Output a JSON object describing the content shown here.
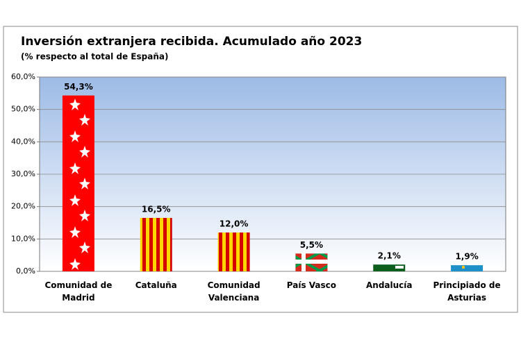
{
  "chart_data": {
    "type": "bar",
    "title": "Inversión extranjera recibida. Acumulado año 2023",
    "subtitle": "(% respecto al total de España)",
    "categories": [
      "Comunidad de Madrid",
      "Cataluña",
      "Comunidad Valenciana",
      "País Vasco",
      "Andalucía",
      "Principiado de Asturias"
    ],
    "values": [
      54.3,
      16.5,
      12.0,
      5.5,
      2.1,
      1.9
    ],
    "value_labels": [
      "54,3%",
      "16,5%",
      "12,0%",
      "5,5%",
      "2,1%",
      "1,9%"
    ],
    "ylim": [
      0,
      60
    ],
    "yticks": [
      {
        "value": 0,
        "label": "0,0%"
      },
      {
        "value": 10,
        "label": "10,0%"
      },
      {
        "value": 20,
        "label": "20,0%"
      },
      {
        "value": 30,
        "label": "30,0%"
      },
      {
        "value": 40,
        "label": "40,0%"
      },
      {
        "value": 50,
        "label": "50,0%"
      },
      {
        "value": 60,
        "label": "60,0%"
      }
    ],
    "grid": true
  }
}
